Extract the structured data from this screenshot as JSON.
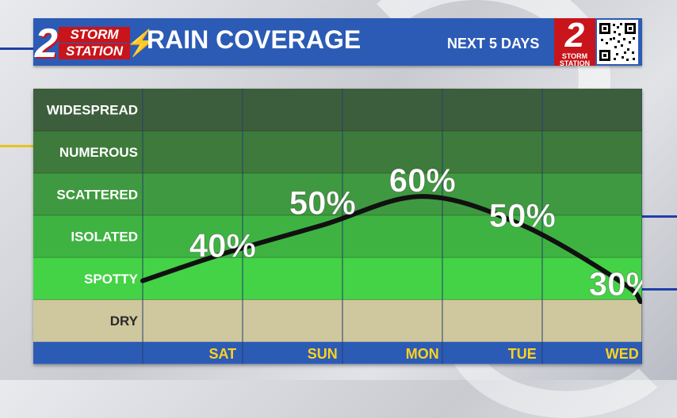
{
  "header": {
    "logo_line1": "STORM",
    "logo_line2": "STATION",
    "logo_number": "2",
    "title": "RAIN COVERAGE",
    "subtitle": "NEXT 5 DAYS",
    "badge_number": "2",
    "badge_line1": "STORM",
    "badge_line2": "STATION"
  },
  "colors": {
    "header_bg": "#2c5bb5",
    "accent_red": "#c8141a",
    "bolt_yellow": "#ffcc22",
    "band_widespread": "#3d5e3c",
    "band_numerous": "#3e7a3b",
    "band_scattered": "#3f9940",
    "band_isolated": "#3fb342",
    "band_spotty": "#44d247",
    "band_dry": "#cfc79e",
    "xaxis_bar": "#2c5bb5"
  },
  "chart_data": {
    "type": "line",
    "categories": [
      "WIDESPREAD",
      "NUMEROUS",
      "SCATTERED",
      "ISOLATED",
      "SPOTTY",
      "DRY"
    ],
    "x": [
      "SAT",
      "SUN",
      "MON",
      "TUE",
      "WED"
    ],
    "series": [
      {
        "values": [
          40,
          50,
          60,
          50,
          30
        ]
      }
    ],
    "data_labels": [
      "40%",
      "50%",
      "60%",
      "50%",
      "30%"
    ],
    "title": "RAIN COVERAGE",
    "xlabel": "",
    "ylabel": "",
    "ylim": [
      0,
      100
    ],
    "grid": true
  }
}
